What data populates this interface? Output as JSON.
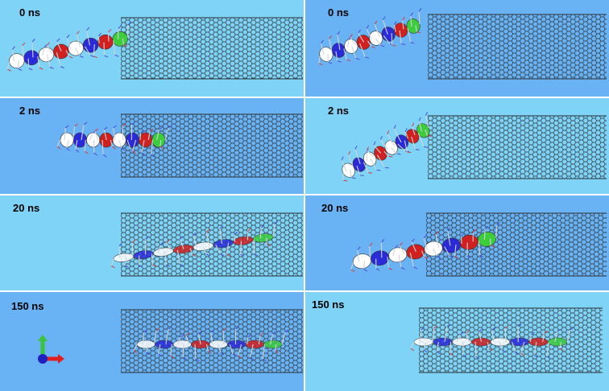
{
  "colors": {
    "light_bg": "#7fd3f7",
    "mid_bg": "#69b2f4",
    "tube": "#2a2f33"
  },
  "panels": [
    {
      "time": "0 ns",
      "bg": "light_bg",
      "state": "outside-left"
    },
    {
      "time": "0 ns",
      "bg": "mid_bg",
      "state": "outside-left"
    },
    {
      "time": "2 ns",
      "bg": "mid_bg",
      "state": "entering"
    },
    {
      "time": "2 ns",
      "bg": "light_bg",
      "state": "entering"
    },
    {
      "time": "20 ns",
      "bg": "light_bg",
      "state": "inside-partial"
    },
    {
      "time": "20 ns",
      "bg": "mid_bg",
      "state": "entering-deep"
    },
    {
      "time": "150 ns",
      "bg": "mid_bg",
      "state": "inside"
    },
    {
      "time": "150 ns",
      "bg": "light_bg",
      "state": "inside"
    }
  ],
  "axes_icon": {
    "x_color": "#e02020",
    "y_color": "#3cc23c",
    "z_color": "#2020c0"
  }
}
